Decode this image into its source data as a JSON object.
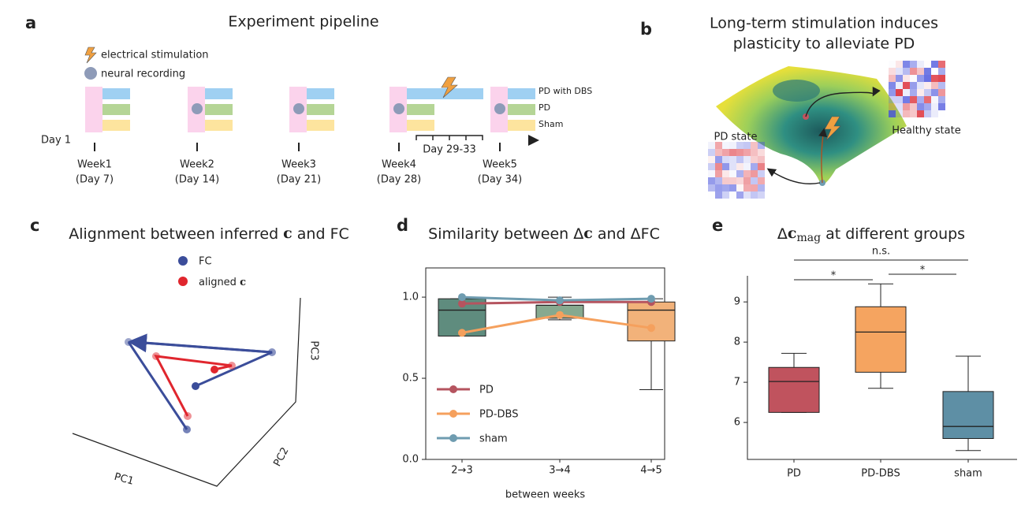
{
  "panels": {
    "a": {
      "letter": "a",
      "title": "Experiment pipeline",
      "legend": [
        "electrical stimulation",
        "neural recording"
      ],
      "groups": [
        "PD with DBS",
        "PD",
        "Sham"
      ],
      "start": "Day 1",
      "stim_window": "Day 29-33",
      "timepoints": [
        {
          "week": "Week1",
          "day": "(Day 7)"
        },
        {
          "week": "Week2",
          "day": "(Day 14)"
        },
        {
          "week": "Week3",
          "day": "(Day 21)"
        },
        {
          "week": "Week4",
          "day": "(Day 28)"
        },
        {
          "week": "Week5",
          "day": "(Day 34)"
        }
      ]
    },
    "b": {
      "letter": "b",
      "title": [
        "Long-term stimulation induces",
        "plasticity to alleviate PD"
      ],
      "states": [
        "PD state",
        "Healthy state"
      ]
    },
    "c": {
      "letter": "c",
      "title": [
        "Alignment between inferred ",
        "c",
        " and FC"
      ],
      "legend": [
        [
          "FC"
        ],
        [
          "aligned ",
          "c"
        ]
      ],
      "axes": [
        "PC1",
        "PC2",
        "PC3"
      ]
    }
  },
  "chart_data": [
    {
      "type": "box",
      "panel": "d",
      "title": [
        "Similarity between Δ",
        "c",
        " and ΔFC"
      ],
      "categories": [
        "2→3",
        "3→4",
        "4→5"
      ],
      "box_colors": [
        "#5f8c7e",
        "#86a98f",
        "#f2b27a"
      ],
      "boxes": [
        {
          "whislo": 0.76,
          "q1": 0.76,
          "med": 0.92,
          "q3": 0.99,
          "whishi": 0.99
        },
        {
          "whislo": 0.86,
          "q1": 0.87,
          "med": 0.95,
          "q3": 0.95,
          "whishi": 1.0
        },
        {
          "whislo": 0.43,
          "q1": 0.73,
          "med": 0.92,
          "q3": 0.97,
          "whishi": 0.99
        }
      ],
      "series": [
        {
          "name": "PD",
          "color": "#b5545f",
          "values": [
            0.96,
            0.97,
            0.97
          ]
        },
        {
          "name": "PD-DBS",
          "color": "#f5a05d",
          "values": [
            0.78,
            0.89,
            0.81
          ]
        },
        {
          "name": "sham",
          "color": "#6f9cb0",
          "values": [
            1.0,
            0.98,
            0.99
          ]
        }
      ],
      "ylim": [
        0,
        1.18
      ],
      "yticks": [
        {
          "value": 0,
          "label": "0.0"
        },
        {
          "value": 0.5,
          "label": "0.5"
        },
        {
          "value": 1,
          "label": "1.0"
        }
      ],
      "xlabel": "between weeks",
      "legend": "lower left",
      "frame": "full"
    },
    {
      "type": "box",
      "panel": "e",
      "title": [
        "Δ",
        "c",
        "mag",
        " at different groups"
      ],
      "categories": [
        "PD",
        "PD-DBS",
        "sham"
      ],
      "box_colors": [
        "#c0535e",
        "#f5a460",
        "#5e8fa5"
      ],
      "boxes": [
        {
          "whislo": 6.25,
          "q1": 6.25,
          "med": 7.02,
          "q3": 7.37,
          "whishi": 7.72
        },
        {
          "whislo": 6.85,
          "q1": 7.25,
          "med": 8.25,
          "q3": 8.88,
          "whishi": 9.45
        },
        {
          "whislo": 5.3,
          "q1": 5.6,
          "med": 5.9,
          "q3": 6.77,
          "whishi": 7.65
        }
      ],
      "ylim": [
        5.08,
        9.65
      ],
      "yticks": [
        6,
        7,
        8,
        9
      ],
      "annotations": [
        "n.s.",
        "*",
        "*"
      ],
      "frame": "left-bottom"
    }
  ]
}
